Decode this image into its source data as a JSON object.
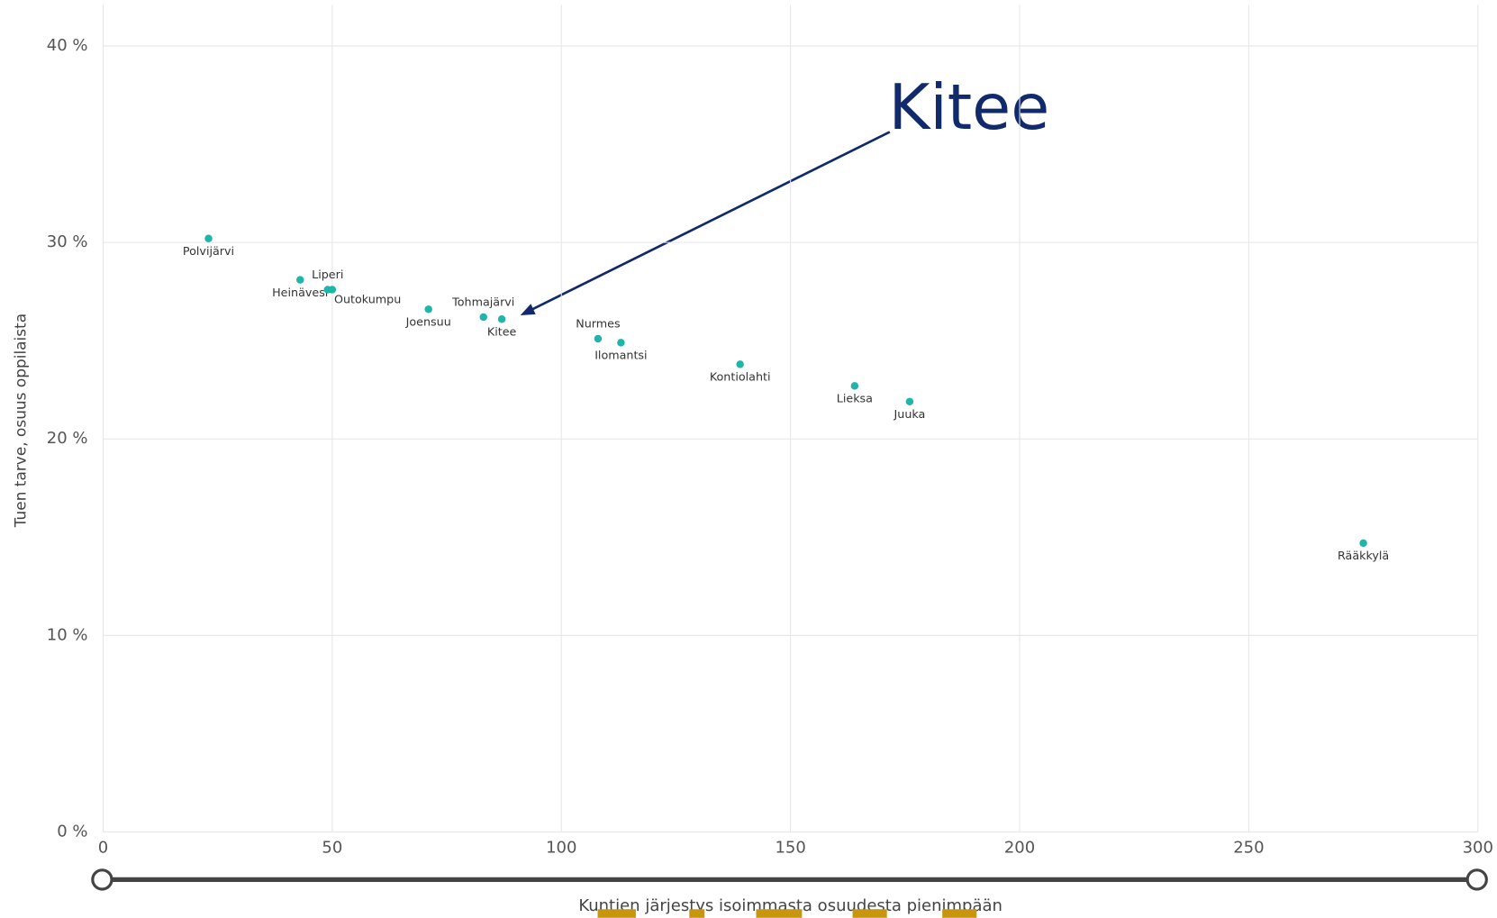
{
  "chart_data": {
    "type": "scatter",
    "annotation": "Kitee",
    "xlabel": "Kuntien järjestys isoimmasta osuudesta pienimpään",
    "ylabel": "Tuen tarve, osuus oppilaista",
    "color": "#1fb5a8",
    "grid": true,
    "xlim": [
      0,
      300
    ],
    "xticks": [
      0,
      50,
      100,
      150,
      200,
      250,
      300
    ],
    "ylim": [
      0,
      40
    ],
    "yticks": [
      {
        "value": 0,
        "label": "0 %"
      },
      {
        "value": 10,
        "label": "10 %"
      },
      {
        "value": 20,
        "label": "20 %"
      },
      {
        "value": 30,
        "label": "30 %"
      },
      {
        "value": 40,
        "label": "40 %"
      }
    ],
    "labels": [
      "Polvijärvi",
      "Heinävesi",
      "Liperi",
      "Outokumpu",
      "Joensuu",
      "Tohmajärvi",
      "Kitee",
      "Nurmes",
      "Ilomantsi",
      "Kontiolahti",
      "Lieksa",
      "Juuka",
      "Rääkkylä"
    ],
    "x": [
      23,
      43,
      49,
      50,
      71,
      83,
      87,
      108,
      113,
      139,
      164,
      176,
      275
    ],
    "values": [
      30.2,
      28.1,
      27.6,
      27.6,
      26.6,
      26.2,
      26.1,
      25.1,
      24.9,
      23.8,
      22.7,
      21.9,
      14.7
    ]
  }
}
